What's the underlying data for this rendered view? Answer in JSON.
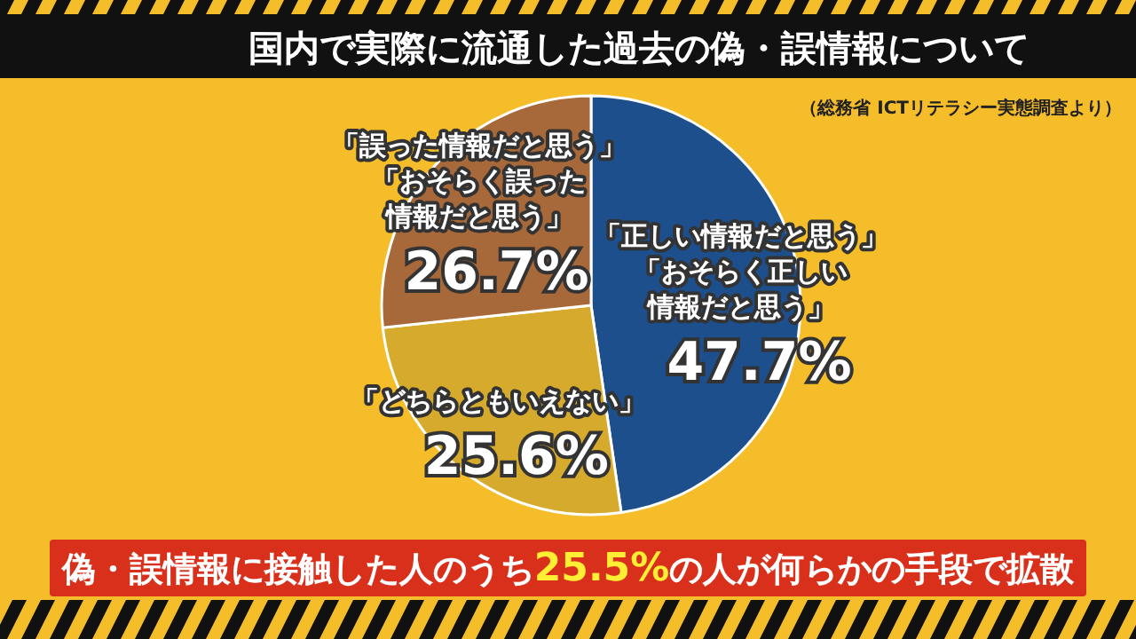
{
  "chart_data": {
    "type": "pie",
    "title": "国内で実際に流通した過去の偽・誤情報について",
    "subtitle": "（総務省 ICTリテラシー実態調査より）",
    "categories": [
      "「正しい情報だと思う」「おそらく正しい情報だと思う」",
      "「どちらともいえない」",
      "「誤った情報だと思う」「おそらく誤った情報だと思う」"
    ],
    "values": [
      47.7,
      25.6,
      26.7
    ],
    "colors": [
      "#1d4f8c",
      "#d6aa2c",
      "#a8693a"
    ],
    "value_labels": [
      "47.7%",
      "25.6%",
      "26.7%"
    ],
    "annotations": [
      "偽・誤情報に接触した人のうち**25.5%**の人が何らかの手段で拡散"
    ]
  }
}
